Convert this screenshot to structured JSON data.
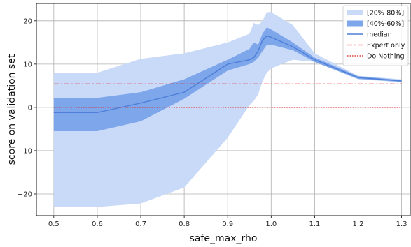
{
  "chart_data": {
    "type": "line",
    "title": "",
    "xlabel": "safe_max_rho",
    "ylabel": "score on validation set",
    "xlim": [
      0.46,
      1.32
    ],
    "ylim": [
      -25,
      24
    ],
    "x_ticks": [
      0.5,
      0.6,
      0.7,
      0.8,
      0.9,
      1.0,
      1.1,
      1.2,
      1.3
    ],
    "x_tick_labels": [
      "0.5",
      "0.6",
      "0.7",
      "0.8",
      "0.9",
      "1.0",
      "1.1",
      "1.2",
      "1.3"
    ],
    "y_ticks": [
      -20,
      -10,
      0,
      10,
      20
    ],
    "y_tick_labels": [
      "−20",
      "−10",
      "0",
      "10",
      "20"
    ],
    "grid": true,
    "legend_position": "top-right",
    "x": [
      0.5,
      0.6,
      0.7,
      0.8,
      0.9,
      0.95,
      0.96,
      0.97,
      0.98,
      0.99,
      1.0,
      1.05,
      1.1,
      1.2,
      1.3
    ],
    "series": [
      {
        "name": "[20%-80%]",
        "kind": "band",
        "color": "#c9daf8",
        "lower": [
          -23,
          -23,
          -22.2,
          -18.5,
          -7,
          0.5,
          1.5,
          3,
          6,
          8,
          9,
          11,
          10.5,
          6.5,
          5.8
        ],
        "upper": [
          8,
          8,
          11.2,
          12.5,
          15,
          17,
          19.5,
          19,
          20,
          22,
          22,
          19,
          12.5,
          7.3,
          6.5
        ]
      },
      {
        "name": "[40%-60%]",
        "kind": "band",
        "color": "#7ea6ea",
        "lower": [
          -5.5,
          -5.5,
          -3.2,
          2,
          8.5,
          10,
          10.5,
          11.5,
          13,
          14.5,
          14.5,
          13.2,
          10.5,
          6.6,
          5.9
        ],
        "upper": [
          2.2,
          2.2,
          3.5,
          6.5,
          11,
          13.5,
          15,
          14.5,
          17,
          18.5,
          18,
          15,
          11.5,
          7.2,
          6.3
        ]
      },
      {
        "name": "median",
        "kind": "line",
        "color": "#4e7fd8",
        "values": [
          -1.2,
          -1.2,
          1,
          3.5,
          10,
          11,
          11.5,
          13,
          15.5,
          16.5,
          16.2,
          14,
          11,
          6.9,
          6.1
        ]
      },
      {
        "name": "Expert only",
        "kind": "hline",
        "color": "#e31a1c",
        "dash": "7,3,2,3",
        "value": 5.4
      },
      {
        "name": "Do Nothing",
        "kind": "hline",
        "color": "#e31a1c",
        "dash": "1.5,2",
        "value": 0
      }
    ]
  }
}
